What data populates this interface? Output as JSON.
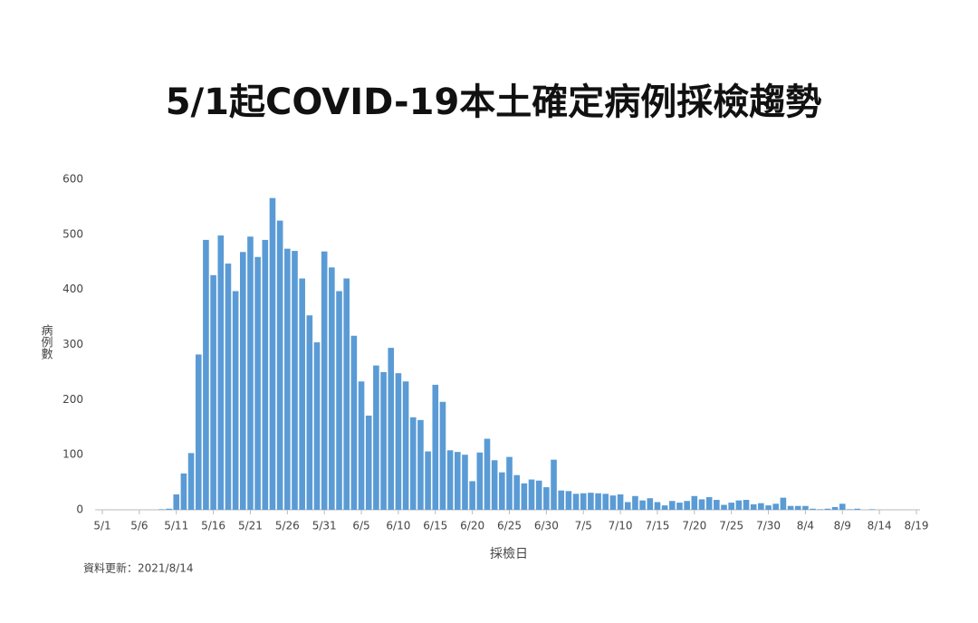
{
  "chart_data": {
    "type": "bar",
    "title": "5/1起COVID-19本土確定病例採檢趨勢",
    "y_label": "病例數",
    "x_label": "採檢日",
    "note": "資料更新：2021/8/14",
    "categories": [
      "5/1",
      null,
      null,
      null,
      null,
      "5/6",
      null,
      null,
      null,
      null,
      "5/11",
      null,
      null,
      null,
      null,
      "5/16",
      null,
      null,
      null,
      null,
      "5/21",
      null,
      null,
      null,
      null,
      "5/26",
      null,
      null,
      null,
      null,
      "5/31",
      null,
      null,
      null,
      null,
      "6/5",
      null,
      null,
      null,
      null,
      "6/10",
      null,
      null,
      null,
      null,
      "6/15",
      null,
      null,
      null,
      null,
      "6/20",
      null,
      null,
      null,
      null,
      "6/25",
      null,
      null,
      null,
      null,
      "6/30",
      null,
      null,
      null,
      null,
      "7/5",
      null,
      null,
      null,
      null,
      "7/10",
      null,
      null,
      null,
      null,
      "7/15",
      null,
      null,
      null,
      null,
      "7/20",
      null,
      null,
      null,
      null,
      "7/25",
      null,
      null,
      null,
      null,
      "7/30",
      null,
      null,
      null,
      null,
      "8/4",
      null,
      null,
      null,
      null,
      "8/9",
      null,
      null,
      null,
      null,
      "8/14",
      null,
      null,
      null,
      null,
      "8/19"
    ],
    "values": [
      0,
      0,
      0,
      0,
      0,
      0,
      0,
      0,
      1,
      2,
      28,
      66,
      103,
      282,
      490,
      426,
      498,
      447,
      397,
      468,
      496,
      459,
      490,
      566,
      525,
      474,
      470,
      420,
      353,
      304,
      469,
      440,
      397,
      420,
      316,
      233,
      171,
      262,
      250,
      294,
      248,
      233,
      168,
      163,
      106,
      227,
      196,
      108,
      105,
      100,
      52,
      104,
      129,
      90,
      68,
      96,
      63,
      48,
      55,
      53,
      41,
      91,
      35,
      34,
      29,
      30,
      31,
      30,
      29,
      26,
      28,
      14,
      25,
      17,
      21,
      14,
      8,
      16,
      13,
      16,
      25,
      19,
      23,
      18,
      9,
      13,
      17,
      18,
      10,
      12,
      8,
      11,
      22,
      7,
      7,
      7,
      2,
      1,
      2,
      5,
      11,
      1,
      2,
      0,
      1,
      0,
      0,
      0,
      0,
      0,
      0
    ],
    "color": "#5a9bd5",
    "ylim": [
      0,
      600
    ],
    "yticks": [
      0,
      100,
      200,
      300,
      400,
      500,
      600
    ],
    "grid": false
  }
}
